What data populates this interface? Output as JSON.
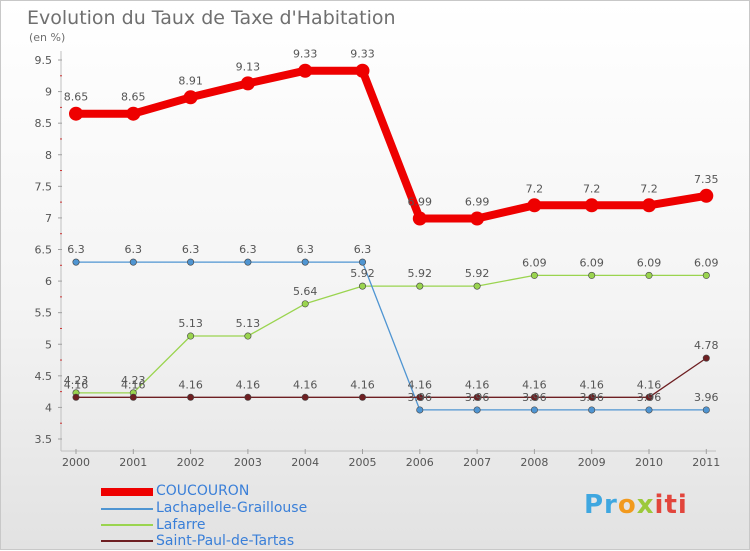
{
  "chart_data": {
    "type": "line",
    "title": "Evolution du Taux de Taxe d'Habitation",
    "subtitle": "(en %)",
    "xlabel": "",
    "ylabel": "",
    "categories": [
      "2000",
      "2001",
      "2002",
      "2003",
      "2004",
      "2005",
      "2006",
      "2007",
      "2008",
      "2009",
      "2010",
      "2011"
    ],
    "ylim": [
      3.5,
      9.5
    ],
    "yticks": [
      "3.5",
      "4",
      "4.5",
      "5",
      "5.5",
      "6",
      "6.5",
      "7",
      "7.5",
      "8",
      "8.5",
      "9",
      "9.5"
    ],
    "grid": false,
    "series": [
      {
        "name": "COUCOURON",
        "color": "#ee0000",
        "values": [
          8.65,
          8.65,
          8.91,
          9.13,
          9.33,
          9.33,
          6.99,
          6.99,
          7.2,
          7.2,
          7.2,
          7.35
        ],
        "labels": [
          "8.65",
          "8.65",
          "8.91",
          "9.13",
          "9.33",
          "9.33",
          "6.99",
          "6.99",
          "7.2",
          "7.2",
          "7.2",
          "7.35"
        ]
      },
      {
        "name": "Lachapelle-Graillouse",
        "color": "#4f95d2",
        "values": [
          6.3,
          6.3,
          6.3,
          6.3,
          6.3,
          6.3,
          3.96,
          3.96,
          3.96,
          3.96,
          3.96,
          3.96
        ],
        "labels": [
          "6.3",
          "6.3",
          "6.3",
          "6.3",
          "6.3",
          "6.3",
          "3.96",
          "3.96",
          "3.96",
          "3.96",
          "3.96",
          "3.96"
        ]
      },
      {
        "name": "Lafarre",
        "color": "#9ad44f",
        "values": [
          4.23,
          4.23,
          5.13,
          5.13,
          5.64,
          5.92,
          5.92,
          5.92,
          6.09,
          6.09,
          6.09,
          6.09
        ],
        "labels": [
          "4.23",
          "4.23",
          "5.13",
          "5.13",
          "5.64",
          "5.92",
          "5.92",
          "5.92",
          "6.09",
          "6.09",
          "6.09",
          "6.09"
        ]
      },
      {
        "name": "Saint-Paul-de-Tartas",
        "color": "#6e1f22",
        "values": [
          4.16,
          4.16,
          4.16,
          4.16,
          4.16,
          4.16,
          4.16,
          4.16,
          4.16,
          4.16,
          4.16,
          4.78
        ],
        "labels": [
          "4.16",
          "4.16",
          "4.16",
          "4.16",
          "4.16",
          "4.16",
          "4.16",
          "4.16",
          "4.16",
          "4.16",
          "4.16",
          "4.78"
        ]
      }
    ]
  },
  "logo": {
    "part1": "Pr",
    "part2": "o",
    "part3": "x",
    "part4": "iti"
  }
}
